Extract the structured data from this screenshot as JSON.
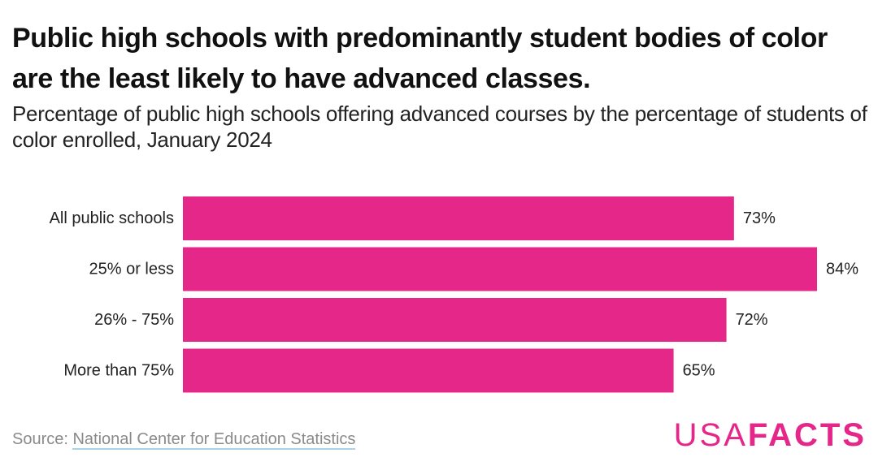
{
  "header": {
    "title": "Public high schools with predominantly student bodies of color are the least likely to have advanced classes.",
    "subtitle": "Percentage of public high schools offering advanced courses by the percentage of students of color enrolled, January 2024"
  },
  "footer": {
    "source_prefix": "Source: ",
    "source_link": "National Center for Education Statistics",
    "logo_usa": "USA",
    "logo_facts": "FACTS"
  },
  "colors": {
    "bar": "#e5278a",
    "link_underline": "#a9d3e6"
  },
  "chart_data": {
    "type": "bar",
    "orientation": "horizontal",
    "categories": [
      "All public schools",
      "25% or less",
      "26% - 75%",
      "More than 75%"
    ],
    "values": [
      73,
      84,
      72,
      65
    ],
    "value_labels": [
      "73%",
      "84%",
      "72%",
      "65%"
    ],
    "unit": "%",
    "xlim": [
      0,
      84
    ],
    "grid": false,
    "legend": "none"
  }
}
